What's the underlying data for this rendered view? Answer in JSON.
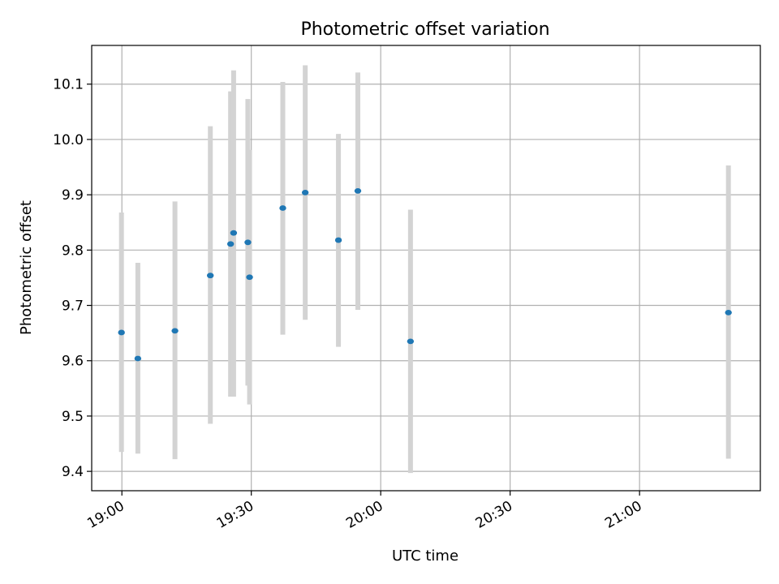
{
  "chart_data": {
    "type": "scatter",
    "title": "Photometric offset variation",
    "xlabel": "UTC time",
    "ylabel": "Photometric offset",
    "x_unit": "minutes after 19:00 UTC",
    "xlim": [
      "18:53",
      "21:28"
    ],
    "ylim": [
      9.365,
      10.17
    ],
    "x_ticks": [
      "19:00",
      "19:30",
      "20:00",
      "20:30",
      "21:00"
    ],
    "y_ticks": [
      9.4,
      9.5,
      9.6,
      9.7,
      9.8,
      9.9,
      10.0,
      10.1
    ],
    "grid": true,
    "colors": {
      "point": "#1f77b4",
      "errorbar": "#d3d3d3"
    },
    "points": [
      {
        "x": "18:59:54",
        "y": 9.651,
        "err_low": 9.435,
        "err_high": 9.868
      },
      {
        "x": "19:03:42",
        "y": 9.604,
        "err_low": 9.432,
        "err_high": 9.777
      },
      {
        "x": "19:12:18",
        "y": 9.654,
        "err_low": 9.422,
        "err_high": 9.888
      },
      {
        "x": "19:20:30",
        "y": 9.754,
        "err_low": 9.486,
        "err_high": 10.024
      },
      {
        "x": "19:25:12",
        "y": 9.811,
        "err_low": 9.535,
        "err_high": 10.087
      },
      {
        "x": "19:25:54",
        "y": 9.831,
        "err_low": 9.535,
        "err_high": 10.125
      },
      {
        "x": "19:29:12",
        "y": 9.814,
        "err_low": 9.555,
        "err_high": 10.073
      },
      {
        "x": "19:29:36",
        "y": 9.751,
        "err_low": 9.521,
        "err_high": 9.981
      },
      {
        "x": "19:37:18",
        "y": 9.876,
        "err_low": 9.647,
        "err_high": 10.104
      },
      {
        "x": "19:42:30",
        "y": 9.904,
        "err_low": 9.674,
        "err_high": 10.134
      },
      {
        "x": "19:50:12",
        "y": 9.818,
        "err_low": 9.625,
        "err_high": 10.01
      },
      {
        "x": "19:54:42",
        "y": 9.907,
        "err_low": 9.692,
        "err_high": 10.121
      },
      {
        "x": "20:06:54",
        "y": 9.635,
        "err_low": 9.397,
        "err_high": 9.873
      },
      {
        "x": "21:20:36",
        "y": 9.687,
        "err_low": 9.423,
        "err_high": 9.953
      }
    ]
  }
}
